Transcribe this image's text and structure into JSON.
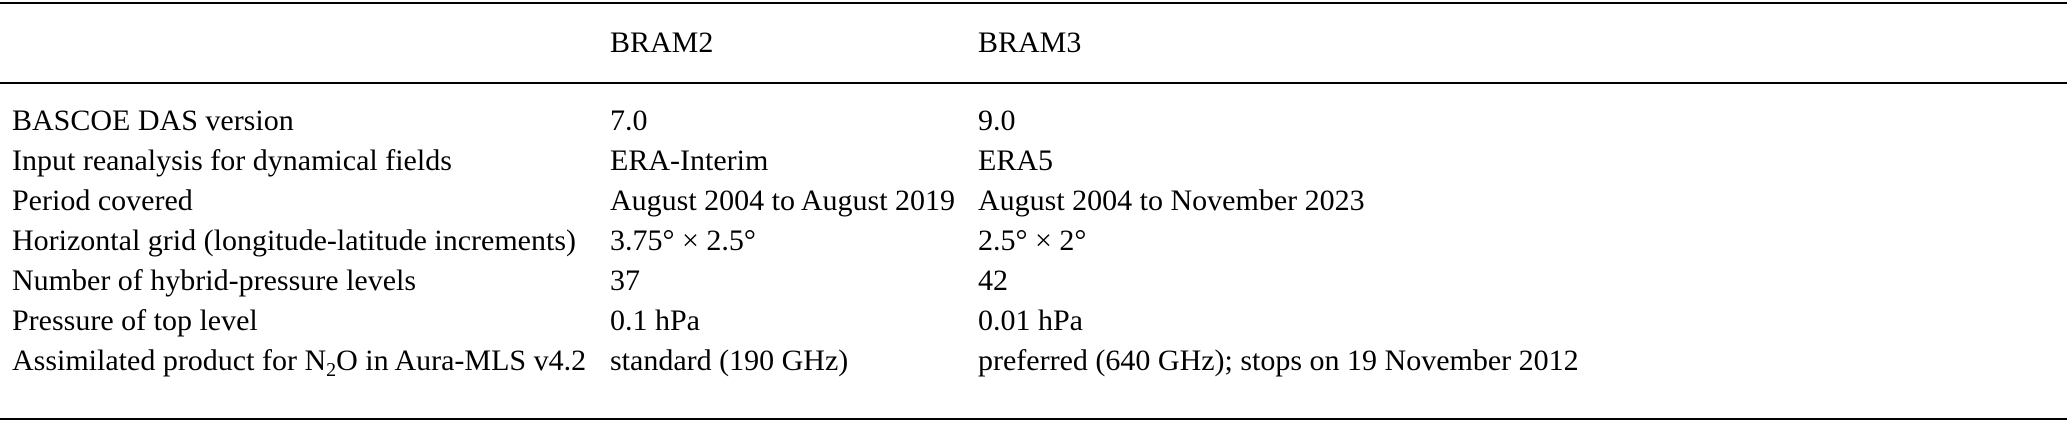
{
  "table": {
    "header": [
      "",
      "BRAM2",
      "BRAM3"
    ],
    "rows": [
      {
        "label": "BASCOE DAS version",
        "bram2": "7.0",
        "bram3": "9.0"
      },
      {
        "label": "Input reanalysis for dynamical fields",
        "bram2": "ERA-Interim",
        "bram3": "ERA5"
      },
      {
        "label": "Period covered",
        "bram2": "August 2004 to August 2019",
        "bram3": "August 2004 to November 2023"
      },
      {
        "label": "Horizontal grid (longitude-latitude increments)",
        "bram2": "3.75° × 2.5°",
        "bram3": "2.5° × 2°"
      },
      {
        "label": "Number of hybrid-pressure levels",
        "bram2": "37",
        "bram3": "42"
      },
      {
        "label": "Pressure of top level",
        "bram2": "0.1 hPa",
        "bram3": "0.01 hPa"
      },
      {
        "label_prefix": "Assimilated product for N",
        "label_sub": "2",
        "label_suffix": "O in Aura-MLS v4.2",
        "bram2": "standard (190 GHz)",
        "bram3": "preferred (640 GHz); stops on 19 November 2012"
      }
    ]
  }
}
